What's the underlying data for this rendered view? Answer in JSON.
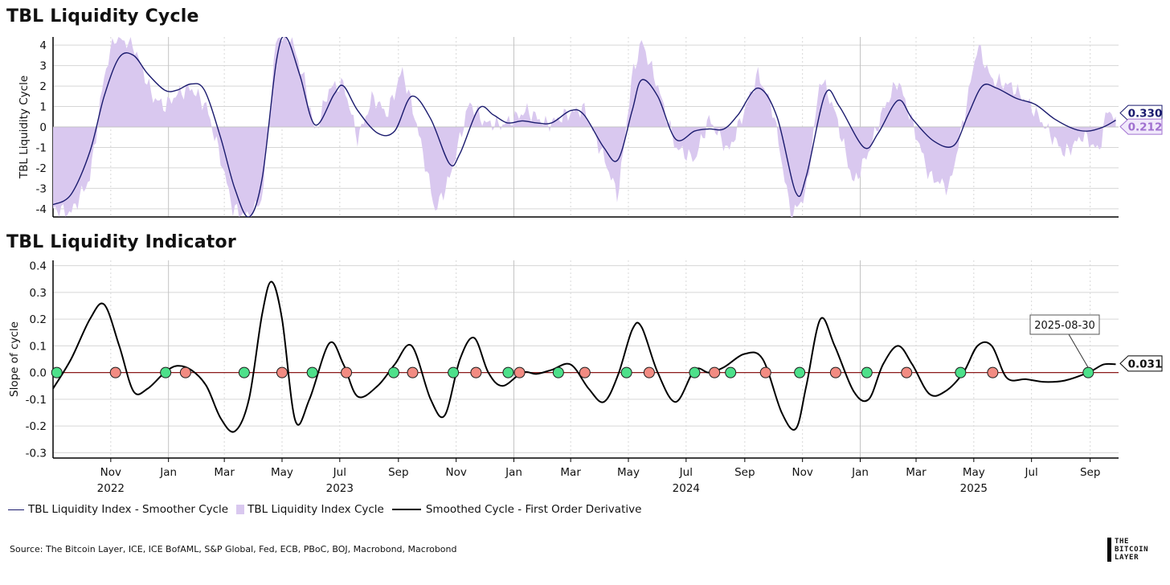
{
  "titles": {
    "top": "TBL Liquidity Cycle",
    "bottom": "TBL Liquidity Indicator"
  },
  "legend": {
    "smoother": "TBL Liquidity Index - Smoother Cycle",
    "cycle": "TBL Liquidity Index Cycle",
    "derivative": "Smoothed Cycle - First Order Derivative"
  },
  "source": "Source: The Bitcoin Layer, ICE, ICE BofAML, S&P Global, Fed, ECB, PBoC, BOJ, Macrobond, Macrobond",
  "logo": [
    "THE",
    "BITCOIN",
    "LAYER"
  ],
  "colors": {
    "smoother": "#1a1a6e",
    "cycle_fill": "#d9c8ef",
    "derivative": "#000000",
    "zero_line": "#8b1a1a",
    "dot_green": "#4de08a",
    "dot_red": "#f28b82",
    "cycle_label": "#a070d0"
  },
  "chart_data": [
    {
      "type": "area",
      "title": "TBL Liquidity Cycle",
      "ylabel": "TBL Liquidity Cycle",
      "ylim": [
        -4.4,
        4.4
      ],
      "yticks": [
        -4,
        -3,
        -2,
        -1,
        0,
        1,
        2,
        3,
        4
      ],
      "grid": true,
      "value_labels": [
        "0.330",
        "0.212"
      ],
      "series": [
        {
          "name": "TBL Liquidity Index - Smoother Cycle",
          "kind": "line",
          "points": [
            [
              "2022-09-01",
              -3.8
            ],
            [
              "2022-09-20",
              -3.3
            ],
            [
              "2022-10-10",
              -1.2
            ],
            [
              "2022-10-25",
              1.5
            ],
            [
              "2022-11-10",
              3.4
            ],
            [
              "2022-11-25",
              3.5
            ],
            [
              "2022-12-10",
              2.6
            ],
            [
              "2022-12-28",
              1.8
            ],
            [
              "2023-01-10",
              1.8
            ],
            [
              "2023-01-25",
              2.1
            ],
            [
              "2023-02-08",
              1.8
            ],
            [
              "2023-02-25",
              -0.5
            ],
            [
              "2023-03-12",
              -3.0
            ],
            [
              "2023-03-27",
              -4.4
            ],
            [
              "2023-04-10",
              -2.5
            ],
            [
              "2023-04-25",
              3.2
            ],
            [
              "2023-05-05",
              4.4
            ],
            [
              "2023-05-20",
              2.5
            ],
            [
              "2023-06-05",
              0.1
            ],
            [
              "2023-06-25",
              1.6
            ],
            [
              "2023-07-05",
              2.0
            ],
            [
              "2023-07-20",
              0.8
            ],
            [
              "2023-08-10",
              -0.3
            ],
            [
              "2023-08-28",
              -0.2
            ],
            [
              "2023-09-15",
              1.5
            ],
            [
              "2023-10-05",
              0.4
            ],
            [
              "2023-10-25",
              -1.8
            ],
            [
              "2023-11-05",
              -1.3
            ],
            [
              "2023-11-25",
              0.9
            ],
            [
              "2023-12-10",
              0.6
            ],
            [
              "2023-12-25",
              0.2
            ],
            [
              "2024-01-10",
              0.3
            ],
            [
              "2024-01-25",
              0.2
            ],
            [
              "2024-02-10",
              0.2
            ],
            [
              "2024-03-01",
              0.8
            ],
            [
              "2024-03-15",
              0.6
            ],
            [
              "2024-04-05",
              -1.0
            ],
            [
              "2024-04-20",
              -1.6
            ],
            [
              "2024-05-05",
              0.8
            ],
            [
              "2024-05-15",
              2.3
            ],
            [
              "2024-06-01",
              1.5
            ],
            [
              "2024-06-20",
              -0.6
            ],
            [
              "2024-07-10",
              -0.2
            ],
            [
              "2024-07-25",
              -0.1
            ],
            [
              "2024-08-10",
              -0.1
            ],
            [
              "2024-08-25",
              0.6
            ],
            [
              "2024-09-15",
              1.9
            ],
            [
              "2024-10-05",
              0.5
            ],
            [
              "2024-10-25",
              -3.2
            ],
            [
              "2024-11-05",
              -2.4
            ],
            [
              "2024-11-25",
              1.6
            ],
            [
              "2024-12-10",
              1.0
            ],
            [
              "2025-01-05",
              -1.0
            ],
            [
              "2025-01-20",
              -0.3
            ],
            [
              "2025-02-10",
              1.3
            ],
            [
              "2025-02-25",
              0.4
            ],
            [
              "2025-03-20",
              -0.7
            ],
            [
              "2025-04-10",
              -0.9
            ],
            [
              "2025-04-25",
              0.6
            ],
            [
              "2025-05-10",
              2.0
            ],
            [
              "2025-05-25",
              1.9
            ],
            [
              "2025-06-15",
              1.4
            ],
            [
              "2025-07-05",
              1.1
            ],
            [
              "2025-07-25",
              0.4
            ],
            [
              "2025-08-15",
              -0.1
            ],
            [
              "2025-08-30",
              -0.2
            ],
            [
              "2025-09-15",
              0.0
            ],
            [
              "2025-09-28",
              0.33
            ]
          ]
        },
        {
          "name": "TBL Liquidity Index Cycle",
          "kind": "area",
          "points": [
            [
              "2022-09-01",
              -4.0
            ],
            [
              "2022-09-20",
              -4.2
            ],
            [
              "2022-10-10",
              -2.5
            ],
            [
              "2022-10-25",
              2.5
            ],
            [
              "2022-11-05",
              4.4
            ],
            [
              "2022-11-25",
              4.0
            ],
            [
              "2022-12-15",
              1.5
            ],
            [
              "2022-12-28",
              1.0
            ],
            [
              "2023-01-10",
              1.6
            ],
            [
              "2023-01-25",
              1.9
            ],
            [
              "2023-02-10",
              1.0
            ],
            [
              "2023-02-25",
              -1.5
            ],
            [
              "2023-03-10",
              -4.0
            ],
            [
              "2023-03-27",
              -4.4
            ],
            [
              "2023-04-10",
              -3.5
            ],
            [
              "2023-04-25",
              4.4
            ],
            [
              "2023-05-10",
              4.4
            ],
            [
              "2023-05-25",
              2.2
            ],
            [
              "2023-06-05",
              -0.3
            ],
            [
              "2023-06-20",
              1.9
            ],
            [
              "2023-07-05",
              2.1
            ],
            [
              "2023-07-20",
              -0.6
            ],
            [
              "2023-08-05",
              1.5
            ],
            [
              "2023-08-20",
              0.6
            ],
            [
              "2023-09-05",
              2.8
            ],
            [
              "2023-09-20",
              0.2
            ],
            [
              "2023-10-10",
              -4.1
            ],
            [
              "2023-10-25",
              -2.5
            ],
            [
              "2023-11-15",
              1.2
            ],
            [
              "2023-12-01",
              0.2
            ],
            [
              "2023-12-20",
              0.1
            ],
            [
              "2024-01-15",
              0.8
            ],
            [
              "2024-02-05",
              0.1
            ],
            [
              "2024-02-25",
              0.6
            ],
            [
              "2024-03-15",
              0.9
            ],
            [
              "2024-04-05",
              -1.5
            ],
            [
              "2024-04-20",
              -3.4
            ],
            [
              "2024-05-05",
              2.5
            ],
            [
              "2024-05-15",
              4.2
            ],
            [
              "2024-06-01",
              2.0
            ],
            [
              "2024-06-20",
              -1.0
            ],
            [
              "2024-07-10",
              -1.6
            ],
            [
              "2024-07-25",
              0.4
            ],
            [
              "2024-08-15",
              -1.2
            ],
            [
              "2024-08-30",
              0.6
            ],
            [
              "2024-09-15",
              2.6
            ],
            [
              "2024-10-01",
              0.8
            ],
            [
              "2024-10-20",
              -4.4
            ],
            [
              "2024-11-05",
              -3.2
            ],
            [
              "2024-11-20",
              2.5
            ],
            [
              "2024-12-05",
              0.8
            ],
            [
              "2024-12-25",
              -2.8
            ],
            [
              "2025-01-10",
              -1.2
            ],
            [
              "2025-01-25",
              0.8
            ],
            [
              "2025-02-10",
              2.3
            ],
            [
              "2025-02-25",
              0.2
            ],
            [
              "2025-03-15",
              -2.4
            ],
            [
              "2025-04-05",
              -3.0
            ],
            [
              "2025-04-20",
              0.3
            ],
            [
              "2025-05-05",
              4.0
            ],
            [
              "2025-05-20",
              2.3
            ],
            [
              "2025-06-10",
              2.0
            ],
            [
              "2025-07-01",
              1.0
            ],
            [
              "2025-07-20",
              -0.3
            ],
            [
              "2025-08-05",
              -1.3
            ],
            [
              "2025-08-25",
              -0.4
            ],
            [
              "2025-09-10",
              -1.2
            ],
            [
              "2025-09-20",
              1.0
            ],
            [
              "2025-09-28",
              0.21
            ]
          ]
        }
      ]
    },
    {
      "type": "line",
      "title": "TBL Liquidity Indicator",
      "ylabel": "Slope of cycle",
      "ylim": [
        -0.32,
        0.42
      ],
      "yticks": [
        -0.3,
        -0.2,
        -0.1,
        0.0,
        0.1,
        0.2,
        0.3,
        0.4
      ],
      "grid": true,
      "value_label": "0.031",
      "annotation": {
        "date": "2025-08-30",
        "text": "2025-08-30"
      },
      "series": [
        {
          "name": "Smoothed Cycle - First Order Derivative",
          "points": [
            [
              "2022-09-01",
              -0.06
            ],
            [
              "2022-09-20",
              0.05
            ],
            [
              "2022-10-10",
              0.2
            ],
            [
              "2022-10-25",
              0.255
            ],
            [
              "2022-11-10",
              0.1
            ],
            [
              "2022-11-25",
              -0.07
            ],
            [
              "2022-12-10",
              -0.06
            ],
            [
              "2022-12-28",
              0.0
            ],
            [
              "2023-01-10",
              0.025
            ],
            [
              "2023-01-25",
              0.01
            ],
            [
              "2023-02-10",
              -0.05
            ],
            [
              "2023-02-25",
              -0.17
            ],
            [
              "2023-03-12",
              -0.22
            ],
            [
              "2023-03-27",
              -0.1
            ],
            [
              "2023-04-10",
              0.22
            ],
            [
              "2023-04-20",
              0.34
            ],
            [
              "2023-05-01",
              0.2
            ],
            [
              "2023-05-15",
              -0.18
            ],
            [
              "2023-05-30",
              -0.1
            ],
            [
              "2023-06-20",
              0.11
            ],
            [
              "2023-07-05",
              0.03
            ],
            [
              "2023-07-20",
              -0.09
            ],
            [
              "2023-08-10",
              -0.05
            ],
            [
              "2023-08-28",
              0.03
            ],
            [
              "2023-09-15",
              0.1
            ],
            [
              "2023-10-05",
              -0.1
            ],
            [
              "2023-10-20",
              -0.16
            ],
            [
              "2023-11-05",
              0.05
            ],
            [
              "2023-11-20",
              0.13
            ],
            [
              "2023-12-05",
              0.0
            ],
            [
              "2023-12-20",
              -0.05
            ],
            [
              "2024-01-10",
              0.0
            ],
            [
              "2024-01-25",
              -0.005
            ],
            [
              "2024-02-10",
              0.01
            ],
            [
              "2024-03-01",
              0.03
            ],
            [
              "2024-03-20",
              -0.06
            ],
            [
              "2024-04-05",
              -0.11
            ],
            [
              "2024-04-20",
              -0.01
            ],
            [
              "2024-05-05",
              0.16
            ],
            [
              "2024-05-15",
              0.17
            ],
            [
              "2024-06-01",
              0.0
            ],
            [
              "2024-06-20",
              -0.11
            ],
            [
              "2024-07-10",
              0.01
            ],
            [
              "2024-07-25",
              0.0
            ],
            [
              "2024-08-10",
              0.02
            ],
            [
              "2024-09-01",
              0.07
            ],
            [
              "2024-09-20",
              0.05
            ],
            [
              "2024-10-10",
              -0.15
            ],
            [
              "2024-10-25",
              -0.21
            ],
            [
              "2024-11-05",
              -0.05
            ],
            [
              "2024-11-20",
              0.2
            ],
            [
              "2024-12-05",
              0.1
            ],
            [
              "2024-12-25",
              -0.07
            ],
            [
              "2025-01-10",
              -0.1
            ],
            [
              "2025-01-25",
              0.03
            ],
            [
              "2025-02-10",
              0.1
            ],
            [
              "2025-02-25",
              0.03
            ],
            [
              "2025-03-15",
              -0.08
            ],
            [
              "2025-04-01",
              -0.07
            ],
            [
              "2025-04-20",
              0.0
            ],
            [
              "2025-05-05",
              0.1
            ],
            [
              "2025-05-20",
              0.1
            ],
            [
              "2025-06-05",
              -0.02
            ],
            [
              "2025-06-25",
              -0.025
            ],
            [
              "2025-07-15",
              -0.035
            ],
            [
              "2025-08-05",
              -0.03
            ],
            [
              "2025-08-30",
              0.0
            ],
            [
              "2025-09-15",
              0.03
            ],
            [
              "2025-09-28",
              0.031
            ]
          ]
        }
      ],
      "markers": {
        "green": [
          "2022-09-05",
          "2022-12-29",
          "2023-03-22",
          "2023-06-02",
          "2023-08-27",
          "2023-10-29",
          "2023-12-26",
          "2024-02-17",
          "2024-04-29",
          "2024-07-10",
          "2024-08-17",
          "2024-10-29",
          "2025-01-08",
          "2025-04-17",
          "2025-08-30"
        ],
        "red": [
          "2022-11-06",
          "2023-01-19",
          "2023-05-01",
          "2023-07-08",
          "2023-09-16",
          "2023-11-22",
          "2024-01-07",
          "2024-03-16",
          "2024-05-23",
          "2024-07-31",
          "2024-09-23",
          "2024-12-06",
          "2025-02-19",
          "2025-05-21"
        ]
      }
    }
  ],
  "x_axis": {
    "months": [
      {
        "date": "2022-11-01",
        "label": "Nov"
      },
      {
        "date": "2023-01-01",
        "label": "Jan"
      },
      {
        "date": "2023-03-01",
        "label": "Mar"
      },
      {
        "date": "2023-05-01",
        "label": "May"
      },
      {
        "date": "2023-07-01",
        "label": "Jul"
      },
      {
        "date": "2023-09-01",
        "label": "Sep"
      },
      {
        "date": "2023-11-01",
        "label": "Nov"
      },
      {
        "date": "2024-01-01",
        "label": "Jan"
      },
      {
        "date": "2024-03-01",
        "label": "Mar"
      },
      {
        "date": "2024-05-01",
        "label": "May"
      },
      {
        "date": "2024-07-01",
        "label": "Jul"
      },
      {
        "date": "2024-09-01",
        "label": "Sep"
      },
      {
        "date": "2024-11-01",
        "label": "Nov"
      },
      {
        "date": "2025-01-01",
        "label": "Jan"
      },
      {
        "date": "2025-03-01",
        "label": "Mar"
      },
      {
        "date": "2025-05-01",
        "label": "May"
      },
      {
        "date": "2025-07-01",
        "label": "Jul"
      },
      {
        "date": "2025-09-01",
        "label": "Sep"
      }
    ],
    "years": [
      {
        "date": "2022-11-01",
        "label": "2022"
      },
      {
        "date": "2023-07-01",
        "label": "2023"
      },
      {
        "date": "2024-07-01",
        "label": "2024"
      },
      {
        "date": "2025-05-01",
        "label": "2025"
      }
    ],
    "range": [
      "2022-09-01",
      "2025-10-01"
    ]
  }
}
